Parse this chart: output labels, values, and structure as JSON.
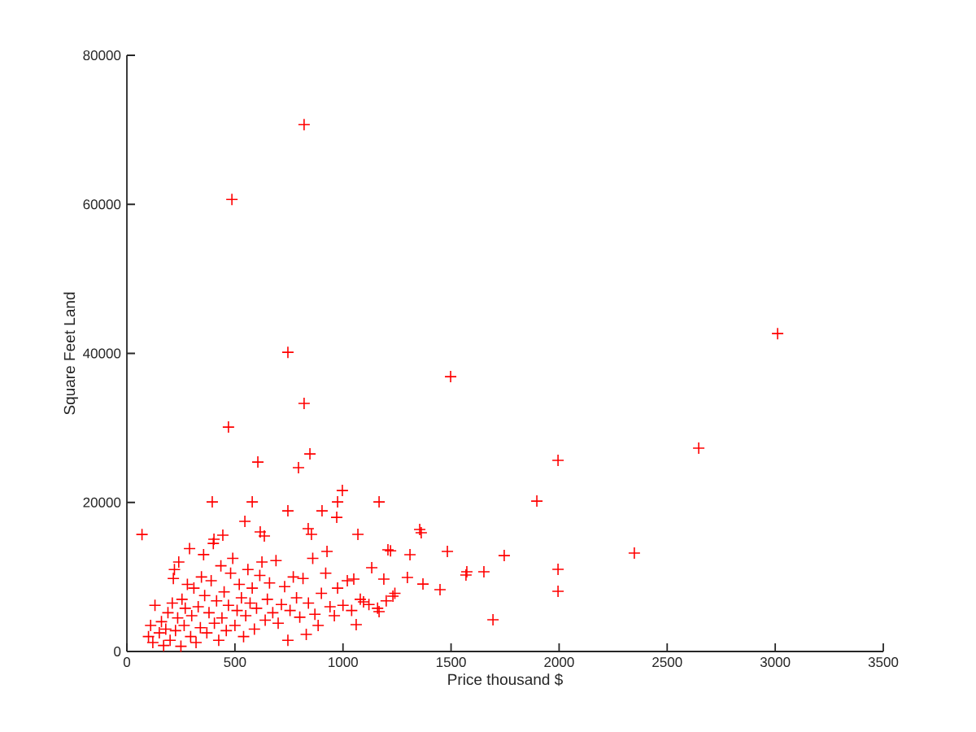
{
  "chart_data": {
    "type": "scatter",
    "xlabel": "Price thousand $",
    "ylabel": "Square Feet Land",
    "color": "#ff0000",
    "marker": "cross",
    "xlim": [
      0,
      3500
    ],
    "ylim": [
      0,
      80000
    ],
    "xticks": [
      0,
      500,
      1000,
      1500,
      2000,
      2500,
      3000,
      3500
    ],
    "yticks": [
      0,
      20000,
      40000,
      60000,
      80000
    ],
    "x": [
      820,
      486,
      3011,
      745,
      1498,
      820,
      470,
      847,
      2646,
      606,
      1995,
      794,
      997,
      1897,
      395,
      580,
      1167,
      975,
      745,
      903,
      971,
      546,
      70,
      1355,
      1362,
      839,
      854,
      617,
      636,
      1069,
      403,
      444,
      1483,
      2348,
      926,
      1133,
      1208,
      1310,
      1746,
      1652,
      1569,
      1573,
      1995,
      1995,
      1694,
      1449,
      1370,
      1298,
      1189,
      1167,
      1061,
      1231,
      1050,
      1095,
      100,
      110,
      120,
      130,
      150,
      160,
      170,
      180,
      190,
      200,
      210,
      215,
      220,
      225,
      235,
      240,
      250,
      255,
      265,
      270,
      280,
      290,
      295,
      300,
      310,
      320,
      330,
      340,
      345,
      355,
      360,
      370,
      380,
      390,
      400,
      405,
      415,
      425,
      435,
      440,
      450,
      460,
      470,
      480,
      490,
      500,
      510,
      520,
      530,
      540,
      550,
      560,
      570,
      580,
      590,
      600,
      615,
      625,
      640,
      650,
      660,
      675,
      690,
      700,
      715,
      730,
      745,
      755,
      770,
      785,
      800,
      815,
      830,
      840,
      860,
      870,
      885,
      900,
      920,
      940,
      960,
      975,
      1000,
      1020,
      1040,
      1080,
      1120,
      1160,
      1200,
      1220,
      1240
    ],
    "values": [
      70700,
      60650,
      42660,
      40150,
      36880,
      33280,
      30110,
      26510,
      27280,
      25420,
      25640,
      24660,
      21600,
      20180,
      20070,
      20070,
      20070,
      20070,
      18870,
      18870,
      18000,
      17460,
      15700,
      16370,
      15930,
      16480,
      15710,
      16040,
      15490,
      15710,
      15060,
      15600,
      13420,
      13200,
      13420,
      11240,
      13640,
      12980,
      12870,
      10690,
      10260,
      10690,
      11020,
      8070,
      4250,
      8290,
      9050,
      9930,
      9710,
      5350,
      3600,
      7420,
      9710,
      6660,
      2000,
      3500,
      1200,
      6200,
      2500,
      4000,
      800,
      3000,
      5200,
      1500,
      6500,
      9800,
      11000,
      2800,
      4500,
      12000,
      700,
      7000,
      3500,
      5800,
      9000,
      13800,
      2000,
      4800,
      8500,
      1200,
      6000,
      3200,
      10000,
      13000,
      7500,
      2500,
      5200,
      9500,
      14500,
      3800,
      6800,
      1500,
      11500,
      4500,
      8000,
      2800,
      6200,
      10500,
      12500,
      3500,
      5500,
      9000,
      7200,
      2000,
      4800,
      11000,
      6500,
      8500,
      3000,
      5800,
      10200,
      12000,
      4200,
      7000,
      9200,
      5200,
      12200,
      3800,
      6300,
      8700,
      1500,
      5500,
      10000,
      7200,
      4600,
      9800,
      2300,
      6500,
      12500,
      5000,
      3500,
      7800,
      10500,
      6000,
      4800,
      8500,
      6200,
      9500,
      5500,
      7000,
      6300,
      5800,
      6800,
      13500,
      7800
    ]
  }
}
